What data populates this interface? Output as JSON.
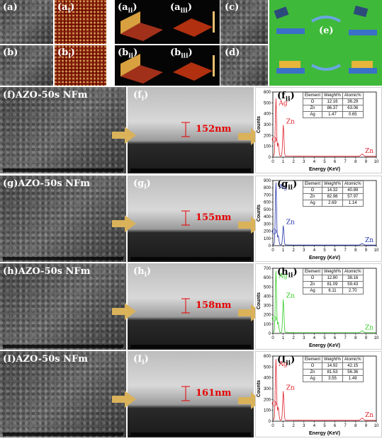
{
  "top_labels": {
    "a": "(a)",
    "ai": "(a",
    "ai_sub": "i",
    "aii": "(a",
    "aii_sub": "ii",
    "aiii": "(a",
    "aiii_sub": "iii",
    "b": "(b)",
    "bi": "(b",
    "bi_sub": "i",
    "bii": "(b",
    "bii_sub": "ii",
    "biii": "(b",
    "biii_sub": "iii",
    "c": "(c)",
    "d": "(d)",
    "e": "(e)"
  },
  "rows": [
    {
      "label": "(f)AZO-50s NFm",
      "cross_label": "(f",
      "cross_sub": "i",
      "thickness": "152nm",
      "eds_label": "(f",
      "eds_sub": "ii",
      "color": "#e0202a",
      "chart_index": 0
    },
    {
      "label": "(g)AZO-50s NFm",
      "cross_label": "(g",
      "cross_sub": "i",
      "thickness": "155nm",
      "eds_label": "(g",
      "eds_sub": "ii",
      "color": "#2233aa",
      "chart_index": 1
    },
    {
      "label": "(h)AZO-50s NFm",
      "cross_label": "(h",
      "cross_sub": "i",
      "thickness": "158nm",
      "eds_label": "(h",
      "eds_sub": "ii",
      "color": "#33cc22",
      "chart_index": 2
    },
    {
      "label": "(I)AZO-50s NFm",
      "cross_label": "(I",
      "cross_sub": "i",
      "thickness": "161nm",
      "eds_label": "(I",
      "eds_sub": "ii",
      "color": "#e0202a",
      "chart_index": 3
    }
  ],
  "table_headers": [
    "Element",
    "Weight%",
    "Atomic%"
  ],
  "chart_data": [
    {
      "type": "line",
      "xlabel": "Energy (KeV)",
      "ylabel": "Counts",
      "xlim": [
        0,
        10
      ],
      "ylim": [
        0,
        600
      ],
      "xticks": [
        0,
        1,
        2,
        3,
        4,
        5,
        6,
        7,
        8,
        9,
        10
      ],
      "yticks": [
        0,
        100,
        200,
        300,
        400,
        500,
        600
      ],
      "peaks": [
        {
          "name": "Ag",
          "x": 0.3,
          "y": 530
        },
        {
          "name": "O",
          "x": 0.52,
          "y": 120
        },
        {
          "name": "Zn",
          "x": 1.01,
          "y": 290
        },
        {
          "name": "Zn",
          "x": 8.63,
          "y": 20
        }
      ],
      "table": [
        [
          "O",
          "12.16",
          "36.29"
        ],
        [
          "Zn",
          "86.37",
          "63.06"
        ],
        [
          "Ag",
          "1.47",
          "0.65"
        ]
      ]
    },
    {
      "type": "line",
      "xlabel": "Energy (KeV)",
      "ylabel": "Counts",
      "xlim": [
        0,
        10
      ],
      "ylim": [
        0,
        900
      ],
      "xticks": [
        0,
        1,
        2,
        3,
        4,
        5,
        6,
        7,
        8,
        9,
        10
      ],
      "yticks": [
        0,
        100,
        200,
        300,
        400,
        500,
        600,
        700,
        800,
        900
      ],
      "peaks": [
        {
          "name": "Ag",
          "x": 0.3,
          "y": 860
        },
        {
          "name": "O",
          "x": 0.52,
          "y": 130
        },
        {
          "name": "Zn",
          "x": 1.01,
          "y": 270
        },
        {
          "name": "Zn",
          "x": 8.63,
          "y": 20
        }
      ],
      "table": [
        [
          "O",
          "14.32",
          "40.89"
        ],
        [
          "Zn",
          "82.98",
          "57.97"
        ],
        [
          "Ag",
          "2.69",
          "1.14"
        ]
      ]
    },
    {
      "type": "line",
      "xlabel": "Energy (KeV)",
      "ylabel": "Counts",
      "xlim": [
        0,
        10
      ],
      "ylim": [
        0,
        700
      ],
      "xticks": [
        0,
        1,
        2,
        3,
        4,
        5,
        6,
        7,
        8,
        9,
        10
      ],
      "yticks": [
        0,
        100,
        200,
        300,
        400,
        500,
        600,
        700
      ],
      "peaks": [
        {
          "name": "Ag",
          "x": 0.3,
          "y": 660
        },
        {
          "name": "O",
          "x": 0.52,
          "y": 110
        },
        {
          "name": "Zn",
          "x": 1.01,
          "y": 360
        },
        {
          "name": "Zn",
          "x": 8.63,
          "y": 20
        }
      ],
      "table": [
        [
          "O",
          "12.80",
          "38.16"
        ],
        [
          "Zn",
          "81.09",
          "59.43"
        ],
        [
          "Ag",
          "6.11",
          "2.70"
        ]
      ]
    },
    {
      "type": "line",
      "xlabel": "Energy (KeV)",
      "ylabel": "Counts",
      "xlim": [
        0,
        10
      ],
      "ylim": [
        0,
        600
      ],
      "xticks": [
        0,
        1,
        2,
        3,
        4,
        5,
        6,
        7,
        8,
        9,
        10
      ],
      "yticks": [
        0,
        100,
        200,
        300,
        400,
        500,
        600
      ],
      "peaks": [
        {
          "name": "Ag",
          "x": 0.3,
          "y": 560
        },
        {
          "name": "O",
          "x": 0.52,
          "y": 120
        },
        {
          "name": "Zn",
          "x": 1.01,
          "y": 270
        },
        {
          "name": "Zn",
          "x": 8.63,
          "y": 20
        }
      ],
      "table": [
        [
          "O",
          "14.92",
          "42.15"
        ],
        [
          "Zn",
          "81.53",
          "56.36"
        ],
        [
          "Ag",
          "3.55",
          "1.49"
        ]
      ]
    }
  ],
  "colors": {
    "red": "#e0202a",
    "blue": "#2233aa",
    "green": "#33cc22",
    "arrow": "#d9b25a"
  }
}
